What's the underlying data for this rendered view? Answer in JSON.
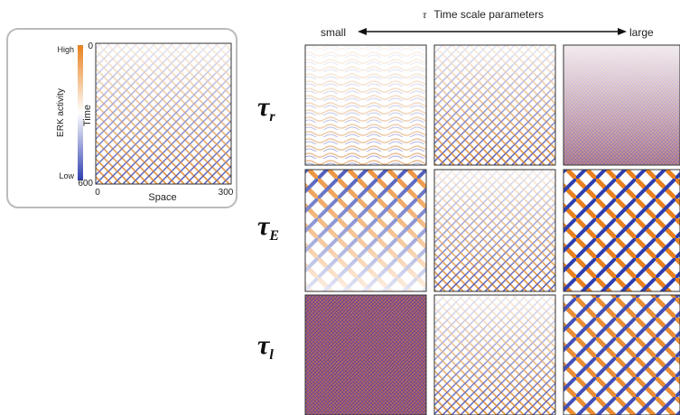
{
  "legend": {
    "high": "High",
    "low": "Low",
    "colorbar_label": "ERK activity",
    "y_axis_label": "Time",
    "x_axis_label": "Space",
    "y_ticks": [
      0,
      600
    ],
    "x_ticks": [
      0,
      300
    ]
  },
  "header": {
    "symbol": "τ",
    "title": "Time scale parameters",
    "left": "small",
    "right": "large"
  },
  "rows": [
    {
      "symbol": "τ",
      "subscript": "r"
    },
    {
      "symbol": "τ",
      "subscript": "E"
    },
    {
      "symbol": "τ",
      "subscript": "l"
    }
  ]
}
